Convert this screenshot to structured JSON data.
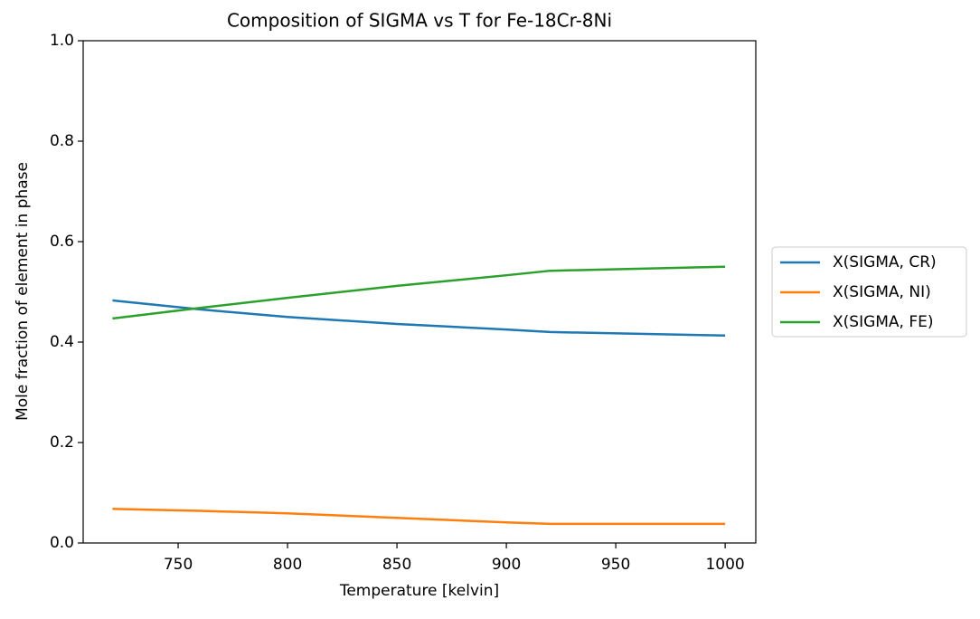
{
  "chart_data": {
    "type": "line",
    "title": "Composition of SIGMA vs T for Fe-18Cr-8Ni",
    "x_label": "Temperature [kelvin]",
    "y_label": "Mole fraction of element in phase",
    "x": [
      720,
      760,
      800,
      850,
      900,
      920,
      1000
    ],
    "series": [
      {
        "name": "X(SIGMA, CR)",
        "color": "#1f77b4",
        "values": [
          0.483,
          0.465,
          0.45,
          0.436,
          0.425,
          0.42,
          0.413
        ]
      },
      {
        "name": "X(SIGMA, NI)",
        "color": "#ff7f0e",
        "values": [
          0.068,
          0.064,
          0.059,
          0.05,
          0.041,
          0.038,
          0.038
        ]
      },
      {
        "name": "X(SIGMA, FE)",
        "color": "#2ca02c",
        "values": [
          0.447,
          0.468,
          0.488,
          0.512,
          0.533,
          0.542,
          0.55
        ]
      }
    ],
    "xlim": [
      706.6,
      1014
    ],
    "xticks": [
      750,
      800,
      850,
      900,
      950,
      1000
    ],
    "ylim": [
      0,
      1
    ],
    "yticks": [
      {
        "value": 0,
        "label": "0.0"
      },
      0.2,
      0.4,
      0.6,
      0.8,
      {
        "value": 1,
        "label": "1.0"
      }
    ],
    "legend": "right"
  }
}
